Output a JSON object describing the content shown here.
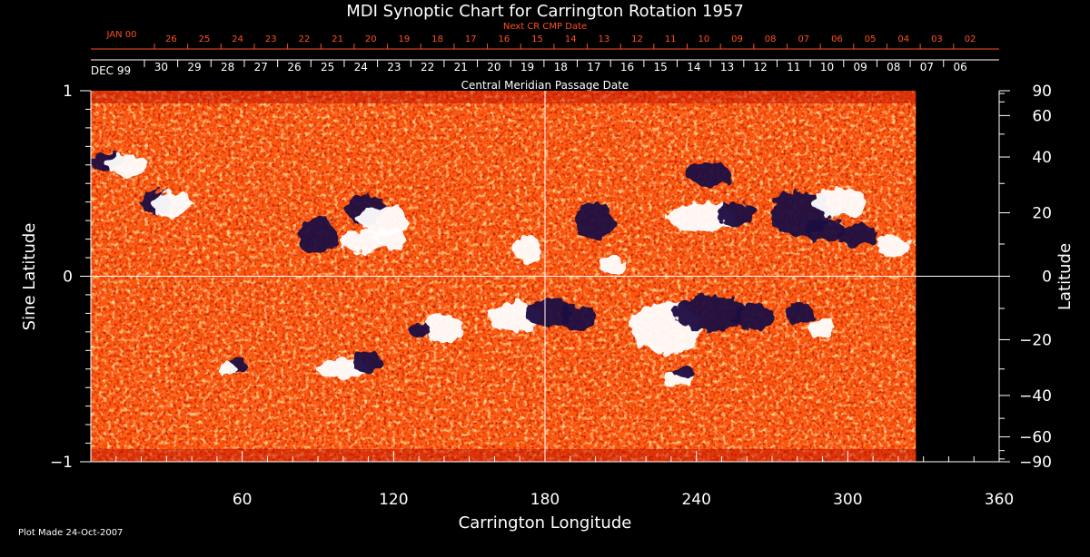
{
  "chart_data": {
    "type": "heatmap",
    "title": "MDI Synoptic Chart for Carrington Rotation 1957",
    "xlabel": "Carrington Longitude",
    "ylabel_left": "Sine Latitude",
    "ylabel_right": "Latitude",
    "xlim": [
      0,
      360
    ],
    "ylim_sine": [
      -1,
      1
    ],
    "data_extent_longitude": [
      0,
      327
    ],
    "x_ticks": [
      60,
      120,
      180,
      240,
      300,
      360
    ],
    "y_left_ticks": [
      {
        "value": 1,
        "label": "1"
      },
      {
        "value": 0,
        "label": "0"
      },
      {
        "value": -1,
        "label": "−1"
      }
    ],
    "y_right_ticks": [
      {
        "lat": 90,
        "label": "90"
      },
      {
        "lat": 60,
        "label": "60"
      },
      {
        "lat": 40,
        "label": "40"
      },
      {
        "lat": 20,
        "label": "20"
      },
      {
        "lat": 0,
        "label": "0"
      },
      {
        "lat": -20,
        "label": "−20"
      },
      {
        "lat": -40,
        "label": "−40"
      },
      {
        "lat": -60,
        "label": "−60"
      },
      {
        "lat": -90,
        "label": "−90"
      }
    ],
    "crosshair": {
      "longitude": 180,
      "sine_latitude": 0
    },
    "cmp_axis": {
      "label": "Central Meridian Passage Date",
      "month_label": "DEC 99",
      "dates": [
        "30",
        "29",
        "28",
        "27",
        "26",
        "25",
        "24",
        "23",
        "22",
        "21",
        "20",
        "19",
        "18",
        "17",
        "16",
        "15",
        "14",
        "13",
        "12",
        "11",
        "10",
        "09",
        "08",
        "07",
        "06"
      ]
    },
    "next_cr_axis": {
      "label": "Next CR CMP Date",
      "month_label": "JAN 00",
      "dates": [
        "26",
        "25",
        "24",
        "23",
        "22",
        "21",
        "20",
        "19",
        "18",
        "17",
        "16",
        "15",
        "14",
        "13",
        "12",
        "11",
        "10",
        "09",
        "08",
        "07",
        "06",
        "05",
        "04",
        "03",
        "02"
      ]
    },
    "regions": [
      {
        "lon": 6,
        "lat": 0.62,
        "rx": 7,
        "ry": 0.05,
        "polarity": "negative"
      },
      {
        "lon": 14,
        "lat": 0.6,
        "rx": 8,
        "ry": 0.06,
        "polarity": "positive"
      },
      {
        "lon": 26,
        "lat": 0.4,
        "rx": 6,
        "ry": 0.06,
        "polarity": "negative"
      },
      {
        "lon": 32,
        "lat": 0.39,
        "rx": 8,
        "ry": 0.07,
        "polarity": "positive"
      },
      {
        "lon": 90,
        "lat": 0.22,
        "rx": 8,
        "ry": 0.1,
        "polarity": "negative"
      },
      {
        "lon": 109,
        "lat": 0.36,
        "rx": 8,
        "ry": 0.08,
        "polarity": "negative"
      },
      {
        "lon": 116,
        "lat": 0.3,
        "rx": 10,
        "ry": 0.08,
        "polarity": "positive"
      },
      {
        "lon": 107,
        "lat": 0.19,
        "rx": 8,
        "ry": 0.06,
        "polarity": "positive"
      },
      {
        "lon": 119,
        "lat": 0.2,
        "rx": 6,
        "ry": 0.06,
        "polarity": "positive"
      },
      {
        "lon": 173,
        "lat": 0.14,
        "rx": 6,
        "ry": 0.07,
        "polarity": "positive"
      },
      {
        "lon": 200,
        "lat": 0.3,
        "rx": 8,
        "ry": 0.1,
        "polarity": "negative"
      },
      {
        "lon": 207,
        "lat": 0.06,
        "rx": 5,
        "ry": 0.06,
        "polarity": "positive"
      },
      {
        "lon": 242,
        "lat": 0.32,
        "rx": 14,
        "ry": 0.08,
        "polarity": "positive"
      },
      {
        "lon": 256,
        "lat": 0.34,
        "rx": 8,
        "ry": 0.06,
        "polarity": "negative"
      },
      {
        "lon": 245,
        "lat": 0.55,
        "rx": 10,
        "ry": 0.06,
        "polarity": "negative"
      },
      {
        "lon": 281,
        "lat": 0.34,
        "rx": 12,
        "ry": 0.12,
        "polarity": "negative"
      },
      {
        "lon": 291,
        "lat": 0.25,
        "rx": 8,
        "ry": 0.06,
        "polarity": "negative"
      },
      {
        "lon": 304,
        "lat": 0.22,
        "rx": 8,
        "ry": 0.06,
        "polarity": "negative"
      },
      {
        "lon": 318,
        "lat": 0.16,
        "rx": 7,
        "ry": 0.05,
        "polarity": "positive"
      },
      {
        "lon": 297,
        "lat": 0.4,
        "rx": 10,
        "ry": 0.08,
        "polarity": "positive"
      },
      {
        "lon": 168,
        "lat": -0.22,
        "rx": 10,
        "ry": 0.08,
        "polarity": "positive"
      },
      {
        "lon": 182,
        "lat": -0.2,
        "rx": 9,
        "ry": 0.08,
        "polarity": "negative"
      },
      {
        "lon": 193,
        "lat": -0.22,
        "rx": 7,
        "ry": 0.07,
        "polarity": "negative"
      },
      {
        "lon": 140,
        "lat": -0.28,
        "rx": 8,
        "ry": 0.08,
        "polarity": "positive"
      },
      {
        "lon": 130,
        "lat": -0.29,
        "rx": 4,
        "ry": 0.04,
        "polarity": "negative"
      },
      {
        "lon": 100,
        "lat": -0.5,
        "rx": 10,
        "ry": 0.06,
        "polarity": "positive"
      },
      {
        "lon": 110,
        "lat": -0.46,
        "rx": 6,
        "ry": 0.06,
        "polarity": "negative"
      },
      {
        "lon": 228,
        "lat": -0.28,
        "rx": 14,
        "ry": 0.14,
        "polarity": "positive"
      },
      {
        "lon": 245,
        "lat": -0.2,
        "rx": 14,
        "ry": 0.1,
        "polarity": "negative"
      },
      {
        "lon": 263,
        "lat": -0.22,
        "rx": 8,
        "ry": 0.07,
        "polarity": "negative"
      },
      {
        "lon": 232,
        "lat": -0.55,
        "rx": 6,
        "ry": 0.04,
        "polarity": "positive"
      },
      {
        "lon": 235,
        "lat": -0.52,
        "rx": 4,
        "ry": 0.03,
        "polarity": "negative"
      },
      {
        "lon": 281,
        "lat": -0.2,
        "rx": 6,
        "ry": 0.06,
        "polarity": "negative"
      },
      {
        "lon": 290,
        "lat": -0.28,
        "rx": 5,
        "ry": 0.05,
        "polarity": "positive"
      },
      {
        "lon": 58,
        "lat": -0.48,
        "rx": 4,
        "ry": 0.04,
        "polarity": "negative"
      },
      {
        "lon": 54,
        "lat": -0.5,
        "rx": 4,
        "ry": 0.03,
        "polarity": "positive"
      }
    ],
    "colors": {
      "positive": "#ffffff",
      "negative": "#1a0a40",
      "background_low": "#c01000",
      "background_mid": "#ff5a10",
      "background_high": "#ffd080"
    }
  },
  "footer": {
    "plot_made": "Plot Made 24-Oct-2007"
  }
}
